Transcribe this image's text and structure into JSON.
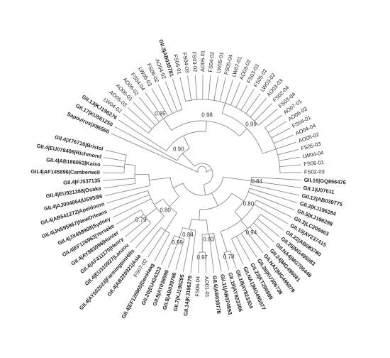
{
  "leaves": [
    {
      "label": "Sapovirus|X86560",
      "bold": true
    },
    {
      "label": "GII.17|KU561250",
      "bold": true
    },
    {
      "label": "GII.13|KJ196276",
      "bold": true
    },
    {
      "label": "LW04-02",
      "bold": false
    },
    {
      "label": "AO05-03",
      "bold": false
    },
    {
      "label": "AO06-01",
      "bold": false
    },
    {
      "label": "AO06-02",
      "bold": false
    },
    {
      "label": "FS04-04",
      "bold": false
    },
    {
      "label": "LW05-03",
      "bold": false
    },
    {
      "label": "FS06-02",
      "bold": false
    },
    {
      "label": "AO04-02",
      "bold": false
    },
    {
      "label": "GII.3|AB039781",
      "bold": true
    },
    {
      "label": "FS05-01",
      "bold": false
    },
    {
      "label": "FS04-03",
      "bold": false
    },
    {
      "label": "FS03-02",
      "bold": false
    },
    {
      "label": "AO05-01",
      "bold": false
    },
    {
      "label": "FS04-02",
      "bold": false
    },
    {
      "label": "LW05-01",
      "bold": false
    },
    {
      "label": "FS05-04",
      "bold": false
    },
    {
      "label": "LW07-01",
      "bold": false
    },
    {
      "label": "AO03-02",
      "bold": false
    },
    {
      "label": "FS03-03",
      "bold": false
    },
    {
      "label": "FS05-02",
      "bold": false
    },
    {
      "label": "LW03-02",
      "bold": false
    },
    {
      "label": "AO03-03",
      "bold": false
    },
    {
      "label": "FS02-04",
      "bold": false
    },
    {
      "label": "FS03-04",
      "bold": false
    },
    {
      "label": "AO07-01",
      "bold": false
    },
    {
      "label": "AO06-03",
      "bold": false
    },
    {
      "label": "FS04-01",
      "bold": false
    },
    {
      "label": "AO04-04",
      "bold": false
    },
    {
      "label": "AO05-02",
      "bold": false
    },
    {
      "label": "FS05-03",
      "bold": false
    },
    {
      "label": "LW04-04",
      "bold": false
    },
    {
      "label": "FS06-01",
      "bold": false
    },
    {
      "label": "FS02-03",
      "bold": false
    },
    {
      "label": "GII.16|GQ856476",
      "bold": true
    },
    {
      "label": "GII.1|U07611",
      "bold": true
    },
    {
      "label": "GII.12|AB039775",
      "bold": true
    },
    {
      "label": "GII.2|KJ196284",
      "bold": true
    },
    {
      "label": "GII.5|KJ196298",
      "bold": true
    },
    {
      "label": "GII.3|LC209463",
      "bold": true
    },
    {
      "label": "GII.10|AY237415",
      "bold": true
    },
    {
      "label": "GII.22|AB083780",
      "bold": true
    },
    {
      "label": "GII.25|MG495083",
      "bold": true
    },
    {
      "label": "GII.NA4|MG706448",
      "bold": true
    },
    {
      "label": "GII.24|MG495081",
      "bold": true
    },
    {
      "label": "GII.NA2|MG495079",
      "bold": true
    },
    {
      "label": "GII.26|KU306738",
      "bold": true
    },
    {
      "label": "GII.23|KT290889",
      "bold": true
    },
    {
      "label": "GII.NA1|MG495077",
      "bold": true
    },
    {
      "label": "GII.18|AY823304",
      "bold": true
    },
    {
      "label": "GII.19|AY823306",
      "bold": true
    },
    {
      "label": "GII.11|AB074893",
      "bold": true
    },
    {
      "label": "GII.6|AB039778",
      "bold": true
    },
    {
      "label": "AO01-01",
      "bold": false
    },
    {
      "label": "FS06-04",
      "bold": false
    },
    {
      "label": "GII.14|KJ196278",
      "bold": true
    },
    {
      "label": "GII.7|KJ196295",
      "bold": true
    },
    {
      "label": "GII.8|AB039780",
      "bold": true
    },
    {
      "label": "GII.9|AY038599",
      "bold": true
    },
    {
      "label": "GII.20|EU424333",
      "bold": true
    },
    {
      "label": "GII.4|EF126965|DenHaag",
      "bold": true
    },
    {
      "label": "FS07-02",
      "bold": false
    },
    {
      "label": "GII.4|AB220921|Asia",
      "bold": true
    },
    {
      "label": "GII.4|AY502023|FarmingtonHills",
      "bold": true
    },
    {
      "label": "GII.4|EU310927|Lanzou",
      "bold": true
    },
    {
      "label": "GII.4|AF411170|Henry",
      "bold": true
    },
    {
      "label": "GII.4|AY883096|Hunter",
      "bold": true
    },
    {
      "label": "GII.4|EF126963|Yerseke",
      "bold": true
    },
    {
      "label": "GII.4|JX459908|Sydney",
      "bold": true
    },
    {
      "label": "GII.4|JN595867|NewOrleans",
      "bold": true
    },
    {
      "label": "GII.4|AB541272|Apeldoorn",
      "bold": true
    },
    {
      "label": "GII.4|AJ004864|US95/96",
      "bold": true
    },
    {
      "label": "GII.4|EU921388|Osaka",
      "bold": true
    },
    {
      "label": "GII.4|FJ537135",
      "bold": true
    },
    {
      "label": "GII.4|AF145896|Camberwell",
      "bold": true
    },
    {
      "label": "GII.4|AB186063|Kaiso",
      "bold": true
    },
    {
      "label": "GII.4|EU078406|Richmond",
      "bold": true
    },
    {
      "label": "GII.4|X76716|Bristol",
      "bold": true
    }
  ],
  "support": [
    "0.98",
    "0.85",
    "0.90",
    "0.99",
    "0.84",
    "0.80",
    "0.94",
    "0.99",
    "0.80",
    "0.84",
    "0.93",
    "0.97",
    "0.78",
    "0.79"
  ]
}
